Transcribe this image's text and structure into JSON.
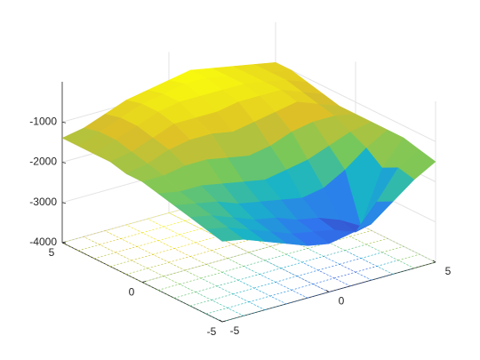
{
  "chart_data": {
    "type": "surface",
    "x": [
      -5,
      -4,
      -3,
      -2,
      -1,
      0,
      1,
      2,
      3,
      4,
      5
    ],
    "y": [
      -5,
      -4,
      -3,
      -2,
      -1,
      0,
      1,
      2,
      3,
      4,
      5
    ],
    "z": [
      [
        -2000,
        -2100,
        -2300,
        -2500,
        -2700,
        -2800,
        -2700,
        -2600,
        -2200,
        -1800,
        -1500
      ],
      [
        -1900,
        -2000,
        -2200,
        -2400,
        -2600,
        -2700,
        -2800,
        -3000,
        -2400,
        -1700,
        -1400
      ],
      [
        -1800,
        -1900,
        -2100,
        -2300,
        -2400,
        -2600,
        -2700,
        -2900,
        -3200,
        -1900,
        -1300
      ],
      [
        -1700,
        -1800,
        -1900,
        -2100,
        -2200,
        -2300,
        -2400,
        -2300,
        -2000,
        -1600,
        -1300
      ],
      [
        -1600,
        -1700,
        -1700,
        -1800,
        -1900,
        -2000,
        -1900,
        -1800,
        -1600,
        -1400,
        -1300
      ],
      [
        -1500,
        -1500,
        -1400,
        -1400,
        -1500,
        -1600,
        -1500,
        -1300,
        -1200,
        -1200,
        -1300
      ],
      [
        -1500,
        -1400,
        -1200,
        -1100,
        -1100,
        -1200,
        -1100,
        -1000,
        -900,
        -1100,
        -1300
      ],
      [
        -1400,
        -1300,
        -1100,
        -900,
        -900,
        -900,
        -800,
        -800,
        -800,
        -1000,
        -1200
      ],
      [
        -1400,
        -1200,
        -1000,
        -800,
        -700,
        -700,
        -700,
        -700,
        -800,
        -900,
        -1100
      ],
      [
        -1400,
        -1200,
        -1000,
        -800,
        -700,
        -600,
        -600,
        -700,
        -800,
        -900,
        -1000
      ],
      [
        -1400,
        -1300,
        -1100,
        -900,
        -800,
        -700,
        -600,
        -700,
        -800,
        -900,
        -1000
      ]
    ],
    "xlim": [
      -5,
      5
    ],
    "ylim": [
      -5,
      5
    ],
    "zlim": [
      -4000,
      0
    ],
    "xticks": [
      -5,
      0,
      5
    ],
    "yticks": [
      -5,
      0,
      5
    ],
    "zticks": [
      -4000,
      -3000,
      -2000,
      -1000
    ],
    "grid": true
  }
}
